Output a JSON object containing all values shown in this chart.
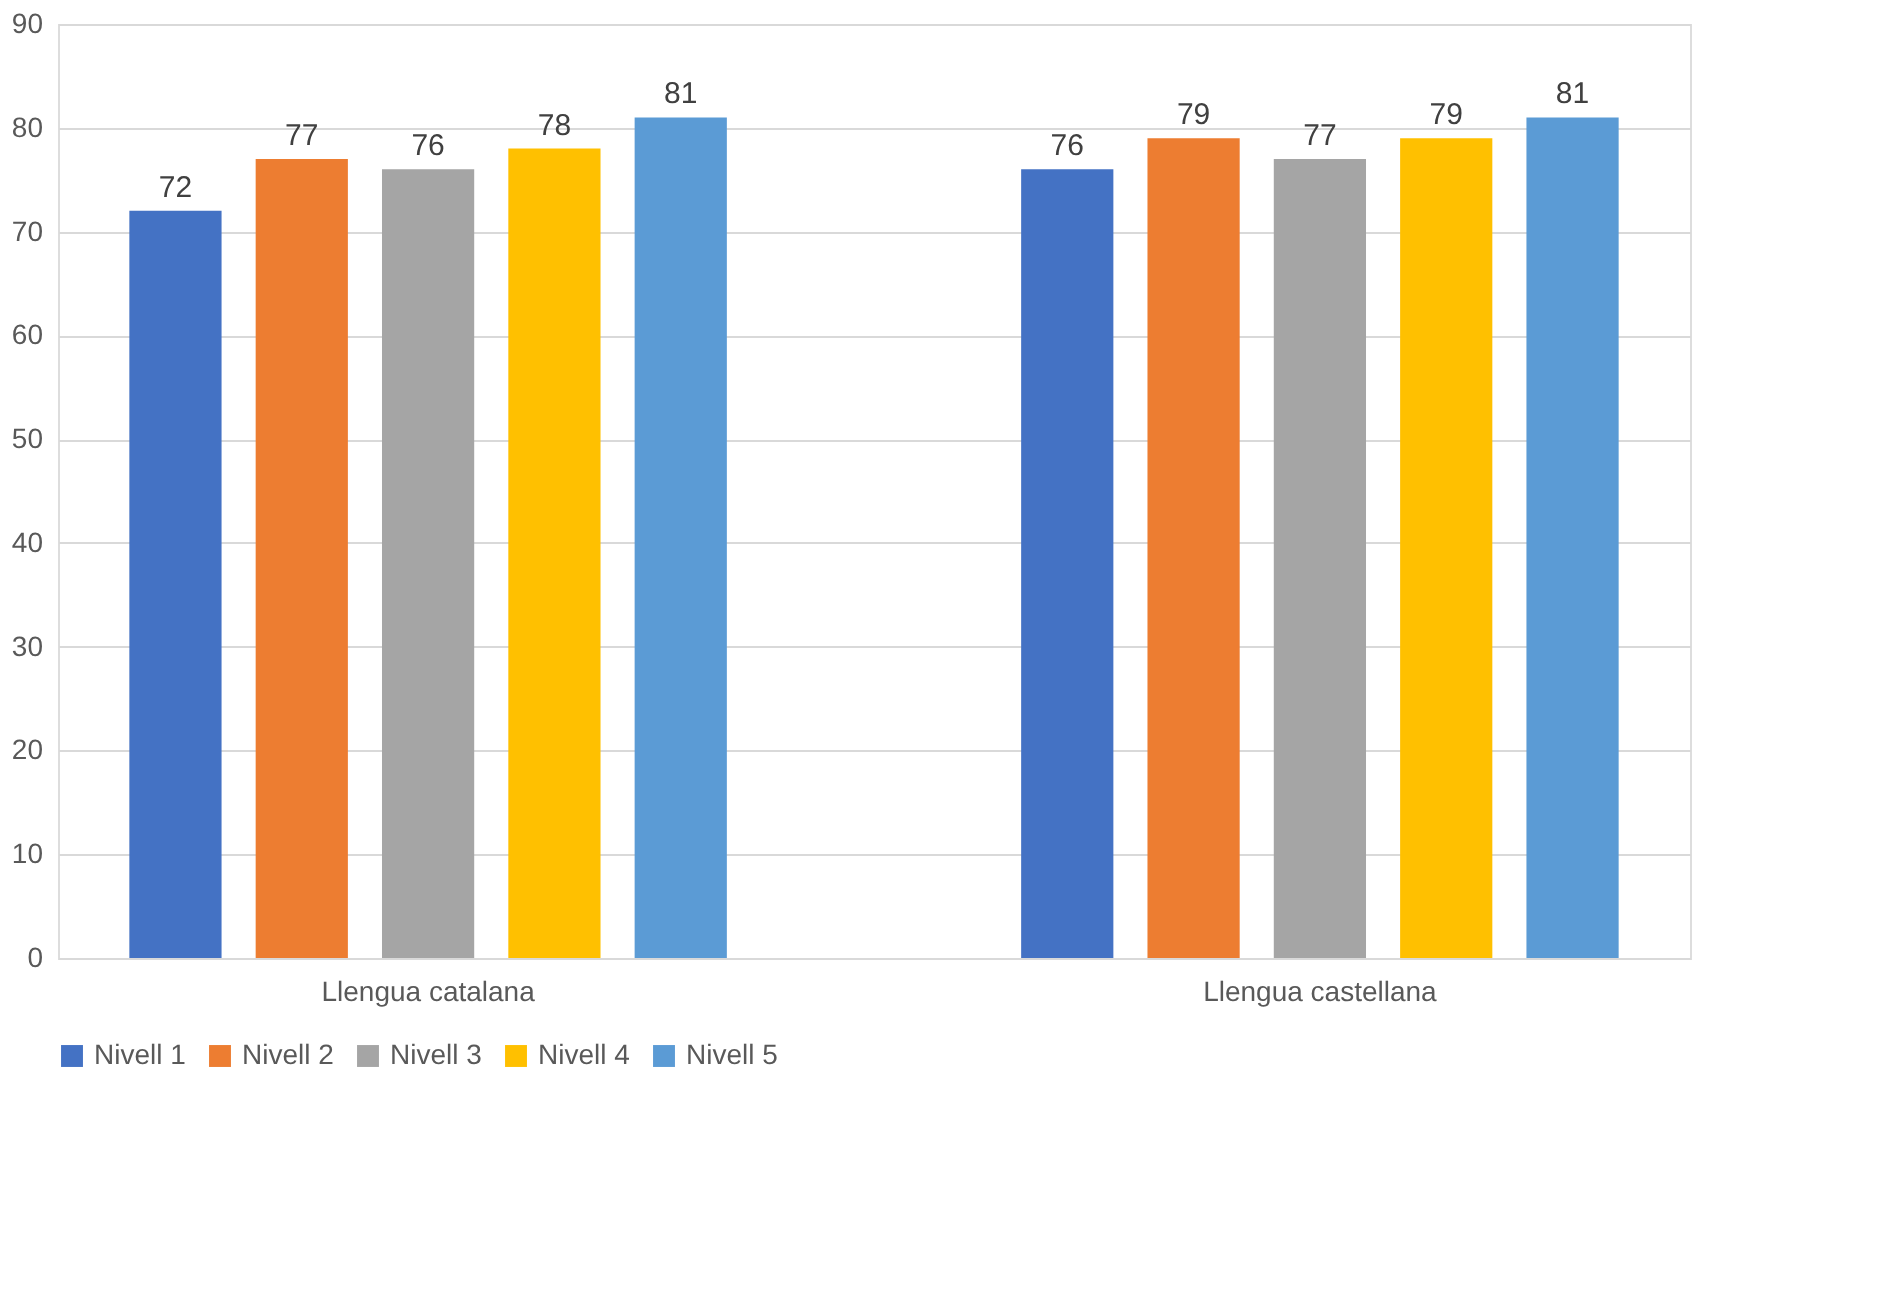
{
  "chart_data": {
    "type": "bar",
    "categories": [
      "Llengua catalana",
      "Llengua castellana"
    ],
    "series": [
      {
        "name": "Nivell 1",
        "color": "#4472c4",
        "values": [
          72,
          76
        ]
      },
      {
        "name": "Nivell 2",
        "color": "#ed7d31",
        "values": [
          77,
          79
        ]
      },
      {
        "name": "Nivell 3",
        "color": "#a5a5a5",
        "values": [
          76,
          77
        ]
      },
      {
        "name": "Nivell 4",
        "color": "#ffc000",
        "values": [
          78,
          79
        ]
      },
      {
        "name": "Nivell 5",
        "color": "#5b9bd5",
        "values": [
          81,
          81
        ]
      }
    ],
    "ylim": [
      0,
      90
    ],
    "yticks": [
      0,
      10,
      20,
      30,
      40,
      50,
      60,
      70,
      80,
      90
    ],
    "grid": "y",
    "legend": "bottom",
    "data_labels": true
  }
}
